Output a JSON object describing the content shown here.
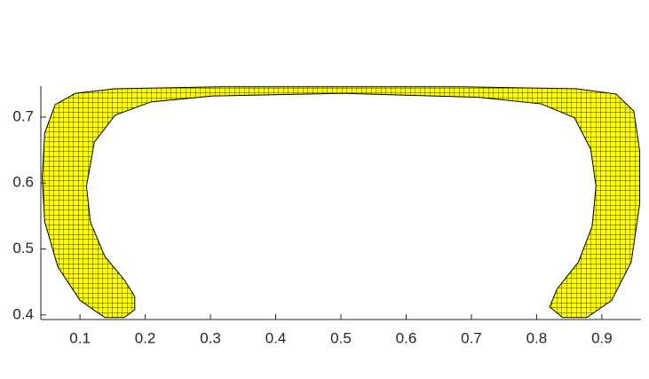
{
  "chart_data": {
    "type": "patch",
    "x": [
      0.184,
      0.168,
      0.138,
      0.1,
      0.066,
      0.046,
      0.042,
      0.046,
      0.062,
      0.093,
      0.154,
      0.317,
      0.501,
      0.684,
      0.861,
      0.922,
      0.949,
      0.958,
      0.958,
      0.945,
      0.915,
      0.877,
      0.84,
      0.82,
      0.831,
      0.864,
      0.885,
      0.891,
      0.883,
      0.858,
      0.807,
      0.711,
      0.501,
      0.304,
      0.209,
      0.154,
      0.122,
      0.11,
      0.116,
      0.138,
      0.168,
      0.184
    ],
    "y": [
      0.408,
      0.396,
      0.396,
      0.422,
      0.473,
      0.541,
      0.608,
      0.676,
      0.719,
      0.736,
      0.743,
      0.746,
      0.746,
      0.746,
      0.743,
      0.735,
      0.709,
      0.649,
      0.568,
      0.48,
      0.422,
      0.396,
      0.396,
      0.412,
      0.439,
      0.48,
      0.534,
      0.595,
      0.651,
      0.699,
      0.72,
      0.73,
      0.736,
      0.732,
      0.723,
      0.703,
      0.662,
      0.595,
      0.541,
      0.489,
      0.453,
      0.428
    ],
    "color": "#ffff00",
    "edgecolor": "#000000",
    "hatch": "grid",
    "xlim": [
      0.04,
      0.96
    ],
    "ylim": [
      0.393,
      0.747
    ],
    "xticks": [
      0.1,
      0.2,
      0.3,
      0.4,
      0.5,
      0.6,
      0.7,
      0.8,
      0.9
    ],
    "yticks": [
      0.4,
      0.5,
      0.6,
      0.7
    ]
  }
}
